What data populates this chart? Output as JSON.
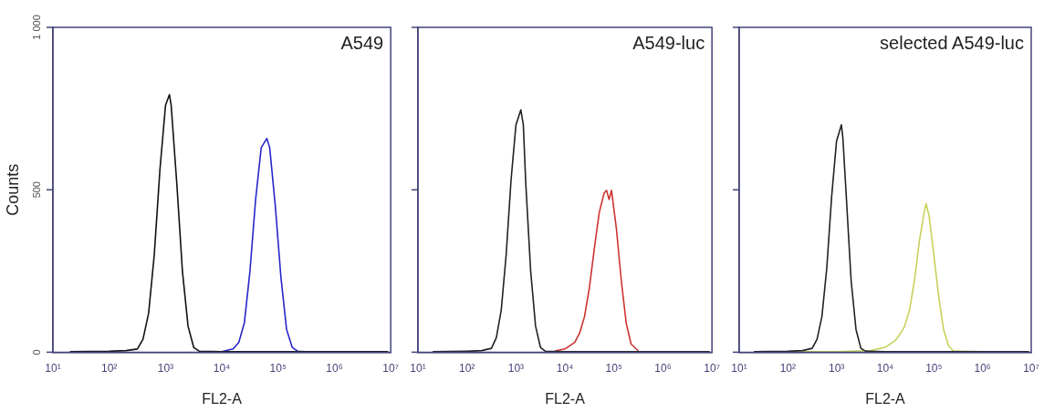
{
  "chart_data": [
    {
      "type": "line",
      "annotations": [
        "A549"
      ],
      "ylabel": "Counts",
      "xlabel": "FL2-A",
      "log": "x",
      "grid": false,
      "legend": false,
      "marker": "none",
      "line_style": "solid",
      "xlim": [
        10,
        10000000
      ],
      "xticks": [
        {
          "value": 10,
          "label": "10¹"
        },
        {
          "value": 100,
          "label": "10²"
        },
        {
          "value": 1000,
          "label": "10³"
        },
        {
          "value": 10000,
          "label": "10⁴"
        },
        {
          "value": 100000,
          "label": "10⁵"
        },
        {
          "value": 1000000,
          "label": "10⁶"
        },
        {
          "value": 10000000,
          "label": "10⁷"
        }
      ],
      "ylim": [
        0,
        1000
      ],
      "yticks": [
        0,
        500,
        {
          "value": 1000,
          "label": "1 000"
        }
      ],
      "series": [
        {
          "color": "#111111",
          "x": [
            20,
            100,
            200,
            316,
            398,
            501,
            631,
            794,
            1000,
            1175,
            1259,
            1585,
            1995,
            2512,
            3162,
            3981,
            10000,
            100000,
            1000000,
            9000000
          ],
          "values": [
            2,
            3,
            5,
            10,
            40,
            120,
            300,
            560,
            760,
            793,
            760,
            520,
            250,
            80,
            15,
            3,
            2,
            2,
            2,
            2
          ]
        },
        {
          "color": "#2626c8",
          "x": [
            10000,
            15849,
            20000,
            25119,
            31623,
            39811,
            50119,
            63096,
            70795,
            89125,
            112202,
            141254,
            177828,
            223872,
            300000
          ],
          "values": [
            2,
            10,
            30,
            90,
            250,
            470,
            630,
            658,
            630,
            450,
            230,
            70,
            15,
            3,
            2
          ]
        }
      ]
    },
    {
      "type": "line",
      "annotations": [
        "A549-luc"
      ],
      "xlabel": "FL2-A",
      "log": "x",
      "grid": false,
      "legend": false,
      "marker": "none",
      "line_style": "solid",
      "tick_labels": "x",
      "xlim": [
        10,
        10000000
      ],
      "xticks": [
        {
          "value": 10,
          "label": "10¹"
        },
        {
          "value": 100,
          "label": "10²"
        },
        {
          "value": 1000,
          "label": "10³"
        },
        {
          "value": 10000,
          "label": "10⁴"
        },
        {
          "value": 100000,
          "label": "10⁵"
        },
        {
          "value": 1000000,
          "label": "10⁶"
        },
        {
          "value": 10000000,
          "label": "10⁷"
        }
      ],
      "ylim": [
        0,
        1000
      ],
      "yticks": [
        0,
        500,
        1000
      ],
      "series": [
        {
          "color": "#222222",
          "x": [
            20,
            100,
            200,
            316,
            398,
            501,
            631,
            794,
            1000,
            1259,
            1413,
            1585,
            1995,
            2512,
            3162,
            3981,
            10000,
            100000,
            1000000,
            9000000
          ],
          "values": [
            2,
            3,
            5,
            12,
            45,
            130,
            300,
            530,
            700,
            746,
            700,
            520,
            250,
            80,
            15,
            3,
            2,
            2,
            2,
            2
          ]
        },
        {
          "color": "#cc3333",
          "x": [
            6310,
            10000,
            15849,
            20000,
            25119,
            31623,
            39811,
            50119,
            63096,
            70795,
            79433,
            89125,
            112202,
            141254,
            177828,
            223872,
            316228
          ],
          "values": [
            4,
            10,
            30,
            60,
            110,
            200,
            320,
            430,
            490,
            498,
            470,
            498,
            380,
            220,
            90,
            25,
            4
          ]
        }
      ]
    },
    {
      "type": "line",
      "annotations": [
        "selected A549-luc"
      ],
      "xlabel": "FL2-A",
      "log": "x",
      "grid": false,
      "legend": false,
      "marker": "none",
      "line_style": "solid",
      "tick_labels": "x",
      "xlim": [
        10,
        10000000
      ],
      "xticks": [
        {
          "value": 10,
          "label": "10¹"
        },
        {
          "value": 100,
          "label": "10²"
        },
        {
          "value": 1000,
          "label": "10³"
        },
        {
          "value": 10000,
          "label": "10⁴"
        },
        {
          "value": 100000,
          "label": "10⁵"
        },
        {
          "value": 1000000,
          "label": "10⁶"
        },
        {
          "value": 10000000,
          "label": "10⁷"
        }
      ],
      "ylim": [
        0,
        1000
      ],
      "yticks": [
        0,
        500,
        1000
      ],
      "series": [
        {
          "color": "#222222",
          "x": [
            20,
            100,
            200,
            316,
            398,
            501,
            631,
            794,
            1000,
            1259,
            1349,
            1585,
            1995,
            2512,
            3162,
            3981,
            10000,
            100000,
            1000000,
            9000000
          ],
          "values": [
            2,
            3,
            5,
            12,
            40,
            110,
            260,
            480,
            650,
            700,
            660,
            480,
            220,
            70,
            12,
            3,
            2,
            2,
            2,
            2
          ]
        },
        {
          "color": "#c8d05a",
          "x": [
            20,
            1000,
            5012,
            10000,
            15849,
            20000,
            25119,
            31623,
            39811,
            50119,
            63096,
            69183,
            79433,
            100000,
            125893,
            158489,
            199526,
            251189,
            1000000,
            9000000
          ],
          "values": [
            2,
            2,
            5,
            15,
            35,
            55,
            80,
            130,
            220,
            340,
            430,
            457,
            420,
            300,
            170,
            70,
            20,
            4,
            2,
            2
          ]
        }
      ]
    }
  ]
}
